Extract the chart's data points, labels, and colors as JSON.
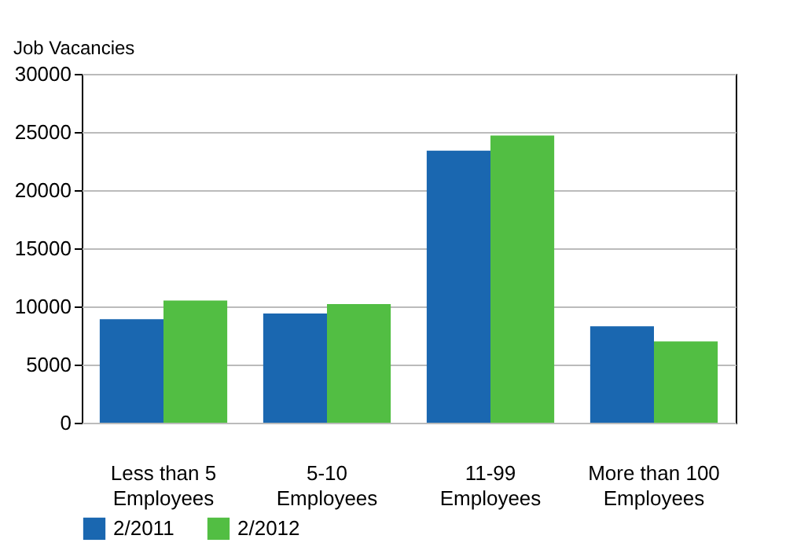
{
  "chart_data": {
    "type": "bar",
    "ylabel": "Job Vacancies",
    "categories": [
      "Less than 5 Employees",
      "5-10 Employees",
      "11-99 Employees",
      "More than 100 Employees"
    ],
    "series": [
      {
        "name": "2/2011",
        "color": "#1a67b0",
        "values": [
          8900,
          9400,
          23400,
          8300
        ]
      },
      {
        "name": "2/2012",
        "color": "#52be43",
        "values": [
          10500,
          10200,
          24700,
          7000
        ]
      }
    ],
    "ylim": [
      0,
      30000
    ],
    "yticks": [
      0,
      5000,
      10000,
      15000,
      20000,
      25000,
      30000
    ],
    "grid": "y",
    "legend": "bottom"
  }
}
